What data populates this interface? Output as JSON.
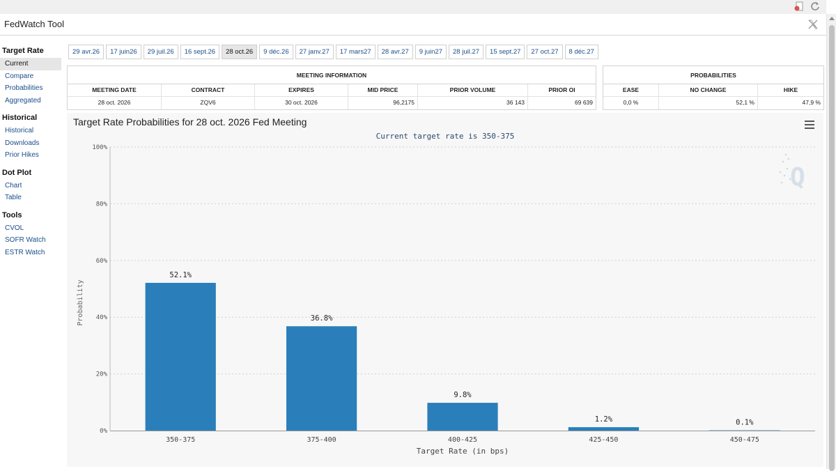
{
  "app": {
    "title": "FedWatch Tool"
  },
  "sidebar": {
    "sections": [
      {
        "heading": "Target Rate",
        "items": [
          "Current",
          "Compare",
          "Probabilities",
          "Aggregated"
        ]
      },
      {
        "heading": "Historical",
        "items": [
          "Historical",
          "Downloads",
          "Prior Hikes"
        ]
      },
      {
        "heading": "Dot Plot",
        "items": [
          "Chart",
          "Table"
        ]
      },
      {
        "heading": "Tools",
        "items": [
          "CVOL",
          "SOFR Watch",
          "ESTR Watch"
        ]
      }
    ],
    "active": "Current"
  },
  "tabs": [
    "29 avr.26",
    "17 juin26",
    "29 juil.26",
    "16 sept.26",
    "28 oct.26",
    "9 déc.26",
    "27 janv.27",
    "17 mars27",
    "28 avr.27",
    "9 juin27",
    "28 juil.27",
    "15 sept.27",
    "27 oct.27",
    "8 déc.27"
  ],
  "active_tab": "28 oct.26",
  "meeting_info": {
    "title": "MEETING INFORMATION",
    "headers": [
      "MEETING DATE",
      "CONTRACT",
      "EXPIRES",
      "MID PRICE",
      "PRIOR VOLUME",
      "PRIOR OI"
    ],
    "values": [
      "28 oct. 2026",
      "ZQV6",
      "30 oct. 2026",
      "96,2175",
      "36 143",
      "69 639"
    ]
  },
  "probabilities": {
    "title": "PROBABILITIES",
    "headers": [
      "EASE",
      "NO CHANGE",
      "HIKE"
    ],
    "values": [
      "0,0 %",
      "52,1 %",
      "47,9 %"
    ]
  },
  "chart": {
    "title": "Target Rate Probabilities for 28 oct. 2026 Fed Meeting",
    "subtitle": "Current target rate is 350-375"
  },
  "chart_data": {
    "type": "bar",
    "title": "Target Rate Probabilities for 28 oct. 2026 Fed Meeting",
    "subtitle": "Current target rate is 350-375",
    "categories": [
      "350-375",
      "375-400",
      "400-425",
      "425-450",
      "450-475"
    ],
    "values": [
      52.1,
      36.8,
      9.8,
      1.2,
      0.1
    ],
    "data_labels": [
      "52.1%",
      "36.8%",
      "9.8%",
      "1.2%",
      "0.1%"
    ],
    "xlabel": "Target Rate (in bps)",
    "ylabel": "Probability",
    "ylim": [
      0,
      100
    ],
    "yticks": [
      "0%",
      "20%",
      "40%",
      "60%",
      "80%",
      "100%"
    ],
    "ytick_values": [
      0,
      20,
      40,
      60,
      80,
      100
    ],
    "bar_color": "#2a7fba",
    "grid": true
  }
}
